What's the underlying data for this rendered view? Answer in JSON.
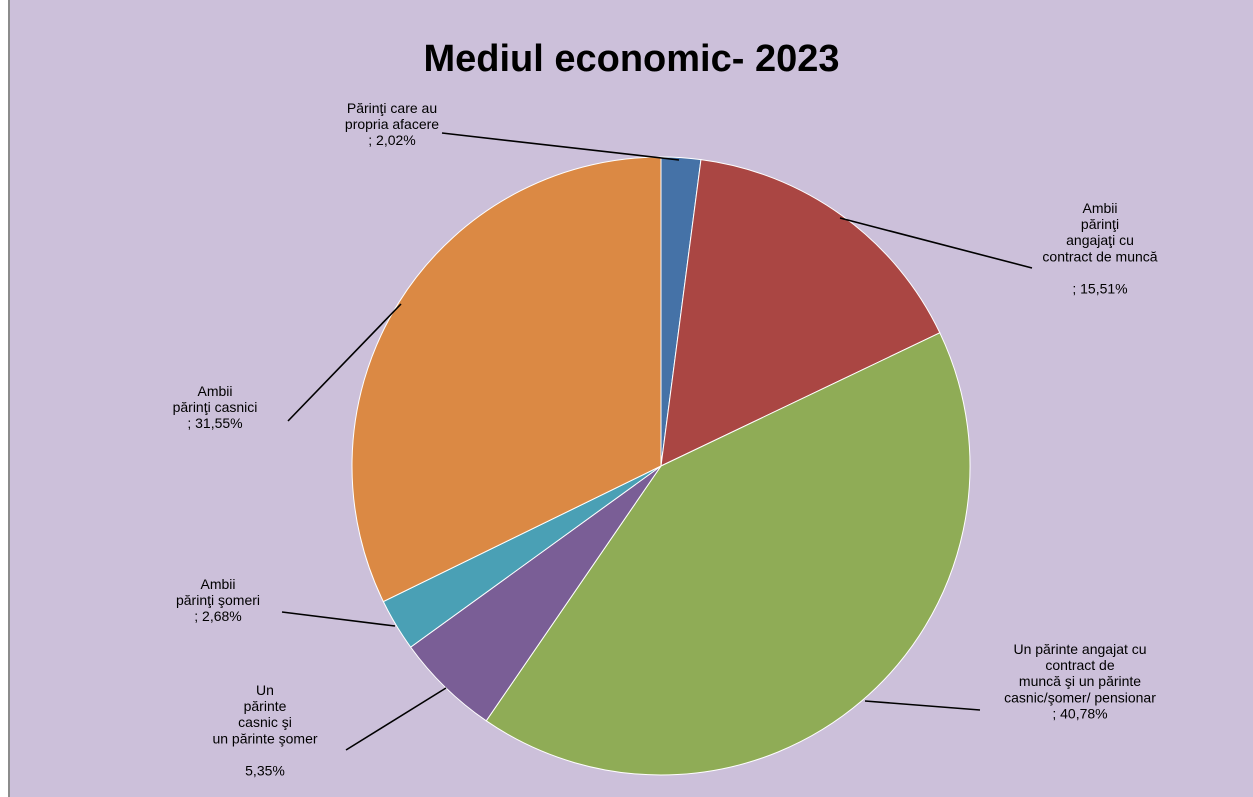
{
  "chart_data": {
    "type": "pie",
    "title": "Mediul economic- 2023",
    "slices": [
      {
        "label_lines": [
          "Părinţi care au",
          "propria afacere",
          "; 2,02%"
        ],
        "value": 2.02,
        "color": "#4572a7"
      },
      {
        "label_lines": [
          "Ambii",
          "părinţi",
          "angajaţi cu",
          "contract de muncă",
          "",
          "; 15,51%"
        ],
        "value": 15.51,
        "color": "#aa4643"
      },
      {
        "label_lines": [
          "Un părinte angajat cu",
          "contract de",
          "muncă şi un părinte",
          "casnic/şomer/ pensionar",
          "; 40,78%"
        ],
        "value": 40.78,
        "color": "#8fac56"
      },
      {
        "label_lines": [
          "Un",
          "părinte",
          "casnic şi",
          "un părinte şomer",
          "",
          "5,35%"
        ],
        "value": 5.35,
        "color": "#7a5e96"
      },
      {
        "label_lines": [
          "Ambii",
          "părinţi şomeri",
          "; 2,68%"
        ],
        "value": 2.68,
        "color": "#4aa0b5"
      },
      {
        "label_lines": [
          "Ambii",
          "părinţi casnici",
          "; 31,55%"
        ],
        "value": 31.55,
        "color": "#db8944"
      }
    ]
  }
}
